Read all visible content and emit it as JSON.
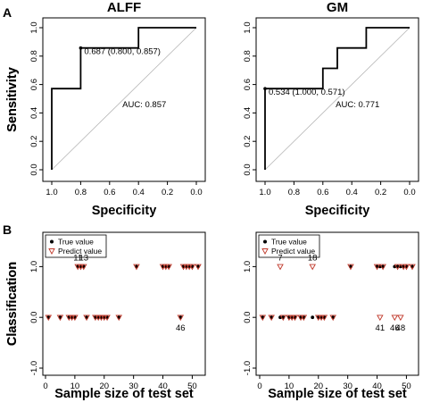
{
  "panel_labels": [
    "A",
    "B"
  ],
  "chart_data": [
    {
      "type": "line",
      "title": "ALFF",
      "xlabel": "Specificity",
      "ylabel": "Sensitivity",
      "xlim": [
        1.0,
        0.0
      ],
      "ylim": [
        0.0,
        1.0
      ],
      "xticks": [
        "1.0",
        "0.8",
        "0.6",
        "0.4",
        "0.2",
        "0.0"
      ],
      "yticks": [
        "0.0",
        "0.2",
        "0.4",
        "0.6",
        "0.8",
        "1.0"
      ],
      "diagonal": true,
      "roc_points": [
        [
          1.0,
          0.0
        ],
        [
          1.0,
          0.571
        ],
        [
          0.8,
          0.571
        ],
        [
          0.8,
          0.857
        ],
        [
          0.4,
          0.857
        ],
        [
          0.4,
          1.0
        ],
        [
          0.0,
          1.0
        ]
      ],
      "threshold_point": [
        0.8,
        0.857
      ],
      "threshold_label": "0.687 (0.800, 0.857)",
      "auc_label": "AUC: 0.857"
    },
    {
      "type": "line",
      "title": "GM",
      "xlabel": "Specificity",
      "ylabel": "Sensitivity",
      "xlim": [
        1.0,
        0.0
      ],
      "ylim": [
        0.0,
        1.0
      ],
      "xticks": [
        "1.0",
        "0.8",
        "0.6",
        "0.4",
        "0.2",
        "0.0"
      ],
      "yticks": [
        "0.0",
        "0.2",
        "0.4",
        "0.6",
        "0.8",
        "1.0"
      ],
      "diagonal": true,
      "roc_points": [
        [
          1.0,
          0.0
        ],
        [
          1.0,
          0.571
        ],
        [
          0.6,
          0.571
        ],
        [
          0.6,
          0.714
        ],
        [
          0.5,
          0.714
        ],
        [
          0.5,
          0.857
        ],
        [
          0.3,
          0.857
        ],
        [
          0.3,
          1.0
        ],
        [
          0.0,
          1.0
        ]
      ],
      "threshold_point": [
        1.0,
        0.571
      ],
      "threshold_label": "0.534 (1.000, 0.571)",
      "auc_label": "AUC: 0.771"
    },
    {
      "type": "scatter",
      "xlabel": "Sample size of test set",
      "ylabel": "Classification",
      "xlim": [
        0,
        52
      ],
      "ylim": [
        -1.0,
        1.5
      ],
      "xticks": [
        "0",
        "10",
        "20",
        "30",
        "40",
        "50"
      ],
      "yticks": [
        "-1.0",
        "0.0",
        "1.0"
      ],
      "legend": [
        "True value",
        "Predict value"
      ],
      "legend_position": "top-left",
      "series": [
        {
          "name": "True value",
          "x": [
            1,
            5,
            8,
            9,
            10,
            11,
            12,
            13,
            14,
            17,
            18,
            19,
            20,
            21,
            25,
            31,
            40,
            41,
            42,
            46,
            47,
            48,
            49,
            50,
            52
          ],
          "values": [
            0,
            0,
            0,
            0,
            0,
            1,
            1,
            1,
            0,
            0,
            0,
            0,
            0,
            0,
            0,
            1,
            1,
            1,
            1,
            0,
            1,
            1,
            1,
            1,
            1
          ]
        },
        {
          "name": "Predict value",
          "x": [
            1,
            5,
            8,
            9,
            10,
            11,
            12,
            13,
            14,
            17,
            18,
            19,
            20,
            21,
            25,
            31,
            40,
            41,
            42,
            46,
            47,
            48,
            49,
            50,
            52
          ],
          "values": [
            0,
            0,
            0,
            0,
            0,
            1,
            1,
            1,
            0,
            0,
            0,
            0,
            0,
            0,
            0,
            1,
            1,
            1,
            1,
            0,
            1,
            1,
            1,
            1,
            1
          ]
        }
      ],
      "annotations": [
        {
          "text": "11",
          "x": 11,
          "y": 1
        },
        {
          "text": "13",
          "x": 13,
          "y": 1
        },
        {
          "text": "46",
          "x": 46,
          "y": 0
        }
      ]
    },
    {
      "type": "scatter",
      "xlabel": "Sample size of test set",
      "ylabel": "Classification",
      "xlim": [
        0,
        52
      ],
      "ylim": [
        -1.0,
        1.5
      ],
      "xticks": [
        "0",
        "10",
        "20",
        "30",
        "40",
        "50"
      ],
      "yticks": [
        "-1.0",
        "0.0",
        "1.0"
      ],
      "legend": [
        "True value",
        "Predict value"
      ],
      "legend_position": "top-left",
      "series": [
        {
          "name": "True value",
          "x": [
            1,
            4,
            7,
            8,
            10,
            11,
            12,
            14,
            15,
            18,
            20,
            21,
            22,
            25,
            31,
            40,
            41,
            42,
            46,
            47,
            48,
            49,
            50,
            52
          ],
          "values": [
            0,
            0,
            0,
            0,
            0,
            0,
            0,
            0,
            0,
            0,
            0,
            0,
            0,
            0,
            1,
            1,
            1,
            1,
            1,
            1,
            1,
            1,
            1,
            1
          ]
        },
        {
          "name": "Predict value",
          "x": [
            1,
            4,
            7,
            8,
            10,
            11,
            12,
            14,
            15,
            18,
            20,
            21,
            22,
            25,
            31,
            40,
            41,
            42,
            46,
            47,
            48,
            49,
            50,
            52
          ],
          "values": [
            0,
            0,
            1,
            0,
            0,
            0,
            0,
            0,
            0,
            1,
            0,
            0,
            0,
            0,
            1,
            1,
            0,
            1,
            0,
            1,
            0,
            1,
            1,
            1
          ]
        }
      ],
      "annotations": [
        {
          "text": "7",
          "x": 7,
          "y": 1
        },
        {
          "text": "18",
          "x": 18,
          "y": 1
        },
        {
          "text": "41",
          "x": 41,
          "y": 0
        },
        {
          "text": "46",
          "x": 46,
          "y": 0
        },
        {
          "text": "48",
          "x": 48,
          "y": 0
        }
      ]
    }
  ]
}
